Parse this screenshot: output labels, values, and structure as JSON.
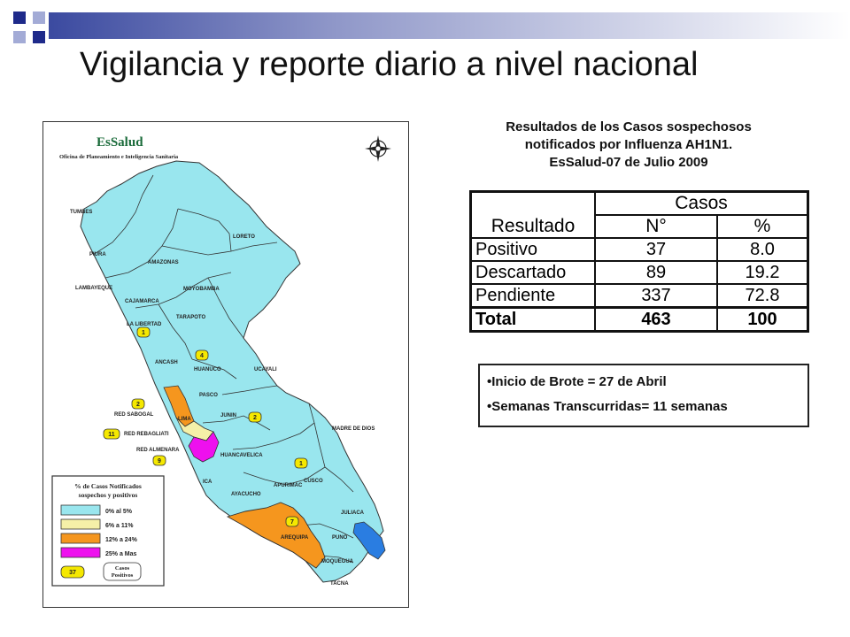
{
  "slide": {
    "title": "Vigilancia y reporte diario a nivel nacional"
  },
  "map": {
    "brand": "EsSalud",
    "office": "Oficina de Planeamiento e Inteligencia Sanitaria",
    "regions": [
      {
        "label": "TUMBES",
        "level": "0% al 5%"
      },
      {
        "label": "PIURA",
        "level": "0% al 5%"
      },
      {
        "label": "LAMBAYEQUE",
        "level": "0% al 5%"
      },
      {
        "label": "CAJAMARCA",
        "level": "0% al 5%"
      },
      {
        "label": "AMAZONAS",
        "level": "0% al 5%"
      },
      {
        "label": "LORETO",
        "level": "0% al 5%"
      },
      {
        "label": "MOYOBAMBA",
        "level": "0% al 5%"
      },
      {
        "label": "TARAPOTO",
        "level": "0% al 5%"
      },
      {
        "label": "LA LIBERTAD",
        "level": "0% al 5%"
      },
      {
        "label": "ANCASH",
        "level": "0% al 5%"
      },
      {
        "label": "HUANUCO",
        "level": "0% al 5%"
      },
      {
        "label": "UCAYALI",
        "level": "0% al 5%"
      },
      {
        "label": "PASCO",
        "level": "0% al 5%"
      },
      {
        "label": "JUNIN",
        "level": "0% al 5%"
      },
      {
        "label": "LIMA",
        "level": "6% a 11%"
      },
      {
        "label": "HUANCAVELICA",
        "level": "0% al 5%"
      },
      {
        "label": "ICA",
        "level": "0% al 5%"
      },
      {
        "label": "AYACUCHO",
        "level": "0% al 5%"
      },
      {
        "label": "APURIMAC",
        "level": "0% al 5%"
      },
      {
        "label": "CUSCO",
        "level": "0% al 5%"
      },
      {
        "label": "MADRE DE DIOS",
        "level": "0% al 5%"
      },
      {
        "label": "AREQUIPA",
        "level": "12% a 24%"
      },
      {
        "label": "PUNO",
        "level": "0% al 5%"
      },
      {
        "label": "JULIACA",
        "level": "0% al 5%"
      },
      {
        "label": "MOQUEGUA",
        "level": "0% al 5%"
      },
      {
        "label": "TACNA",
        "level": "0% al 5%"
      },
      {
        "label": "RED SABOGAL",
        "level": "12% a 24%"
      },
      {
        "label": "RED REBAGLIATI",
        "level": "6% a 11%"
      },
      {
        "label": "RED ALMENARA",
        "level": "25% a Mas"
      }
    ],
    "badges": [
      "1",
      "4",
      "2",
      "2",
      "11",
      "9",
      "1",
      "7"
    ],
    "legend": {
      "title_line1": "% de Casos Notificados",
      "title_line2": "sospechos y positivos",
      "items": [
        {
          "label": "0% al 5%",
          "color": "#99e6ee"
        },
        {
          "label": "6% a 11%",
          "color": "#f5f0a8"
        },
        {
          "label": "12% a 24%",
          "color": "#f5961e"
        },
        {
          "label": "25% a Mas",
          "color": "#ee10ee"
        }
      ],
      "example_badge": "37",
      "cases_line1": "Casos",
      "cases_line2": "Positivos"
    },
    "colors": {
      "puno_highlight": "#2a7de1",
      "badge": "#f5e800",
      "border": "#333333"
    }
  },
  "results": {
    "title_line1": "Resultados de los Casos sospechosos",
    "title_line2": "notificados por Influenza AH1N1.",
    "title_line3": "EsSalud-07 de Julio 2009",
    "table": {
      "col_result": "Resultado",
      "group_header": "Casos",
      "col_n": "N°",
      "col_pct": "%",
      "rows": [
        {
          "label": "Positivo",
          "n": "37",
          "pct": "8.0"
        },
        {
          "label": "Descartado",
          "n": "89",
          "pct": "19.2"
        },
        {
          "label": "Pendiente",
          "n": "337",
          "pct": "72.8"
        }
      ],
      "total": {
        "label": "Total",
        "n": "463",
        "pct": "100"
      }
    },
    "notes": [
      "•Inicio de Brote = 27 de Abril",
      "•Semanas Transcurridas= 11 semanas"
    ]
  }
}
